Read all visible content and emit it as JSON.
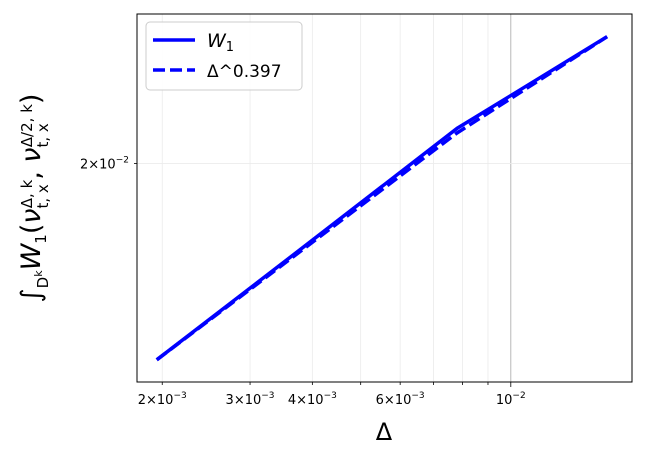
{
  "chart_data": {
    "type": "line",
    "xscale": "log",
    "yscale": "log",
    "xlim": [
      0.00178,
      0.0175
    ],
    "ylim": [
      0.0118,
      0.0287
    ],
    "xlabel": "Δ",
    "ylabel": "∫_{D^k} W_1(ν_{t,x}^{Δ,k}, ν_{t,x}^{Δ/2,k})",
    "xticks": [
      {
        "value": 0.002,
        "label": "2×10^-3"
      },
      {
        "value": 0.003,
        "label": "3×10^-3"
      },
      {
        "value": 0.004,
        "label": "4×10^-3"
      },
      {
        "value": 0.006,
        "label": "6×10^-3"
      },
      {
        "value": 0.01,
        "label": "10^-2"
      }
    ],
    "yticks": [
      {
        "value": 0.02,
        "label": "2×10^-2"
      }
    ],
    "grid": true,
    "legend_position": "top-left",
    "series": [
      {
        "name": "W_1",
        "style": "solid",
        "color": "#0000ff",
        "x": [
          0.00195,
          0.0039,
          0.0078,
          0.0156
        ],
        "y": [
          0.01245,
          0.01645,
          0.02177,
          0.02717
        ]
      },
      {
        "name": "Δ^0.397",
        "style": "dashed",
        "color": "#0000ff",
        "x": [
          0.00195,
          0.0039,
          0.0078,
          0.0156
        ],
        "y": [
          0.01245,
          0.01637,
          0.02153,
          0.02717
        ]
      }
    ]
  }
}
